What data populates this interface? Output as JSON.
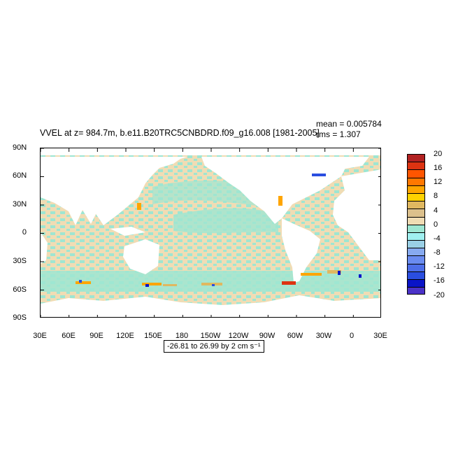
{
  "title": "VVEL at z= 984.7m, b.e11.B20TRC5CNBDRD.f09_g16.008 [1981-2005]",
  "stats": {
    "mean": "mean = 0.005784",
    "rms": "rms = 1.307"
  },
  "range_label": "-26.81 to 26.99 by 2 cm s⁻¹",
  "colors": {
    "ocean_neg": "#9ee6d2",
    "ocean_pos": "#f0dcb4",
    "land": "#ffffff"
  },
  "chart_data": {
    "type": "heatmap",
    "title": "VVEL at z= 984.7m, b.e11.B20TRC5CNBDRD.f09_g16.008 [1981-2005]",
    "projection": "cylindrical equidistant, centered 210E",
    "x_ticks": [
      "30E",
      "60E",
      "90E",
      "120E",
      "150E",
      "180",
      "150W",
      "120W",
      "90W",
      "60W",
      "30W",
      "0",
      "30E"
    ],
    "y_ticks": [
      "90N",
      "60N",
      "30N",
      "0",
      "30S",
      "60S",
      "90S"
    ],
    "colorbar": {
      "labels": [
        "20",
        "16",
        "12",
        "8",
        "4",
        "0",
        "-4",
        "-8",
        "-12",
        "-16",
        "-20"
      ],
      "colors": [
        "#b22222",
        "#dd3311",
        "#ff5500",
        "#ff7700",
        "#ffa500",
        "#ffd200",
        "#e0b860",
        "#dcc08c",
        "#f0dcb4",
        "#9ee6d2",
        "#a0f0f0",
        "#9ad0e6",
        "#87aaf0",
        "#6a8cf0",
        "#4d6ee8",
        "#2a4ee0",
        "#0a14c8",
        "#4b32c8"
      ]
    },
    "mean": 0.005784,
    "rms": 1.307,
    "units": "cm s⁻¹"
  }
}
